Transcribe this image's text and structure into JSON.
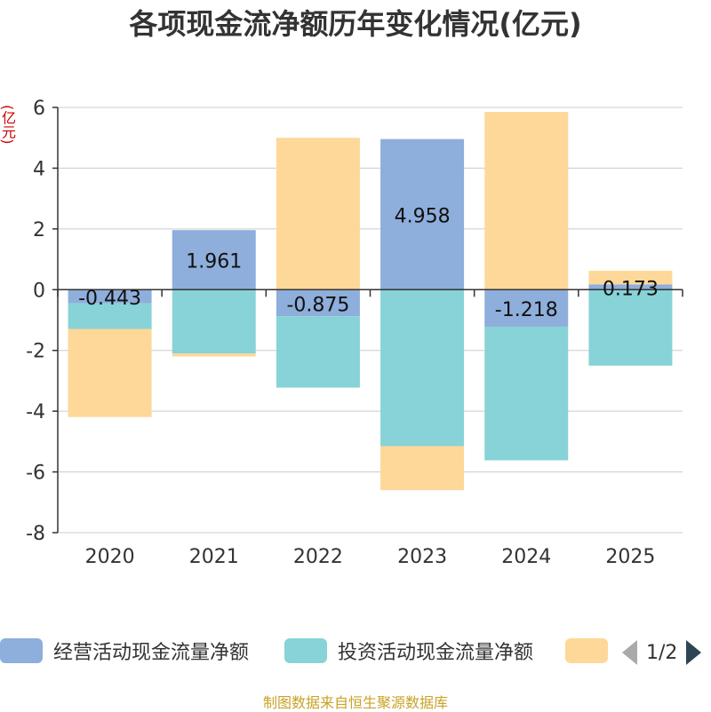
{
  "title": "各项现金流净额历年变化情况(亿元)",
  "footer": "制图数据来自恒生聚源数据库",
  "pager": "1/2",
  "colors": {
    "operating": "#8eaedb",
    "investing": "#87d3d7",
    "financing": "#fdd899",
    "axis": "#333333",
    "grid": "#cccccc"
  },
  "chart_data": {
    "type": "bar",
    "stacked": true,
    "title": "各项现金流净额历年变化情况(亿元)",
    "ylabel": "(亿元)",
    "ylim": [
      -8,
      6
    ],
    "yticks": [
      6,
      4,
      2,
      0,
      -2,
      -4,
      -6,
      -8
    ],
    "categories": [
      "2020",
      "2021",
      "2022",
      "2023",
      "2024",
      "2025"
    ],
    "series": [
      {
        "name": "经营活动现金流量净额",
        "values": [
          -0.443,
          1.961,
          -0.875,
          4.958,
          -1.218,
          0.173
        ],
        "labels": [
          "-0.443",
          "1.961",
          "-0.875",
          "4.958",
          "-1.218",
          "0.173"
        ],
        "color_key": "operating"
      },
      {
        "name": "投资活动现金流量净额",
        "values": [
          -0.85,
          -2.1,
          -2.35,
          -5.15,
          -4.4,
          -2.5
        ],
        "color_key": "investing"
      },
      {
        "name": "",
        "values": [
          -2.9,
          -0.1,
          5.0,
          -1.45,
          5.85,
          0.45
        ],
        "color_key": "financing"
      }
    ],
    "legend_position": "bottom"
  }
}
